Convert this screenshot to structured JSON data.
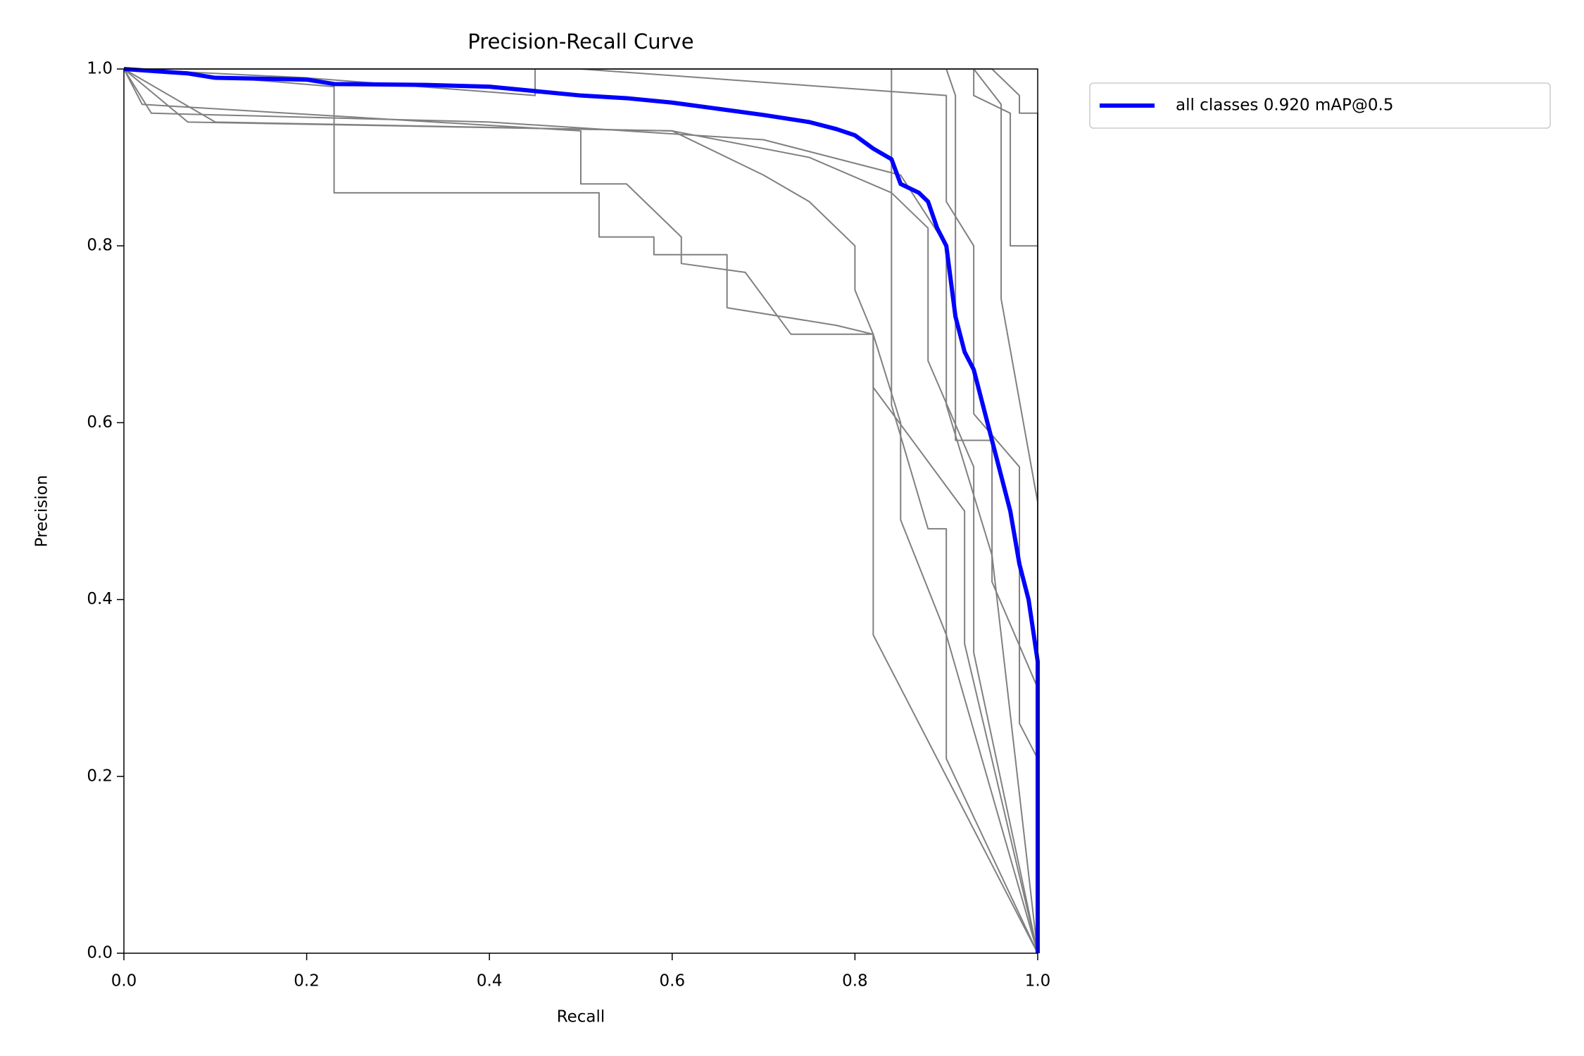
{
  "chart_data": {
    "type": "line",
    "title": "Precision-Recall Curve",
    "x_label": "Recall",
    "y_label": "Precision",
    "xlim": [
      0,
      1
    ],
    "ylim": [
      0,
      1
    ],
    "xticks": [
      {
        "value": 0,
        "label": "0.0"
      },
      0.2,
      0.4,
      0.6,
      0.8,
      {
        "value": 1,
        "label": "1.0"
      }
    ],
    "yticks": [
      {
        "value": 0,
        "label": "0.0"
      },
      0.2,
      0.4,
      0.6,
      0.8,
      {
        "value": 1,
        "label": "1.0"
      }
    ],
    "legend": "outside-upper-right",
    "series": [
      {
        "color": "#808080",
        "x": [
          0,
          0.23,
          0.23,
          0.52,
          0.52,
          0.58,
          0.58,
          0.66,
          0.66,
          0.78,
          0.82,
          0.82,
          0.82,
          1.0
        ],
        "values": [
          1,
          0.98,
          0.86,
          0.86,
          0.81,
          0.81,
          0.79,
          0.79,
          0.73,
          0.71,
          0.7,
          0.64,
          0.36,
          0
        ]
      },
      {
        "color": "#808080",
        "x": [
          0,
          0.02,
          0.5,
          0.5,
          0.55,
          0.61,
          0.61,
          0.68,
          0.73,
          0.82,
          0.82,
          0.92,
          0.92,
          1.0
        ],
        "values": [
          1,
          0.96,
          0.93,
          0.87,
          0.87,
          0.81,
          0.78,
          0.77,
          0.7,
          0.7,
          0.64,
          0.5,
          0.35,
          0
        ]
      },
      {
        "color": "#808080",
        "x": [
          0,
          0.07,
          0.6,
          0.7,
          0.75,
          0.8,
          0.8,
          0.82,
          0.85,
          0.85,
          0.9,
          1.0
        ],
        "values": [
          1,
          0.94,
          0.93,
          0.88,
          0.85,
          0.8,
          0.75,
          0.7,
          0.6,
          0.49,
          0.36,
          0
        ]
      },
      {
        "color": "#808080",
        "x": [
          0,
          0.1,
          0.6,
          0.75,
          0.84,
          0.88,
          0.88,
          0.93,
          0.93,
          1.0
        ],
        "values": [
          1,
          0.94,
          0.93,
          0.9,
          0.86,
          0.82,
          0.67,
          0.55,
          0.34,
          0
        ]
      },
      {
        "color": "#808080",
        "x": [
          0,
          0.03,
          0.4,
          0.7,
          0.85,
          0.9,
          0.9,
          0.95,
          1.0
        ],
        "values": [
          1,
          0.95,
          0.94,
          0.92,
          0.88,
          0.8,
          0.62,
          0.45,
          0
        ]
      },
      {
        "color": "#808080",
        "x": [
          0,
          0.2,
          0.45,
          0.45,
          0.84,
          0.84,
          0.88,
          0.9,
          0.9,
          1.0
        ],
        "values": [
          1,
          0.99,
          0.97,
          1.0,
          1.0,
          0.62,
          0.48,
          0.48,
          0.22,
          0
        ]
      },
      {
        "color": "#808080",
        "x": [
          0,
          0.5,
          0.9,
          0.9,
          0.93,
          0.93,
          0.98,
          0.98,
          1.0,
          1.0
        ],
        "values": [
          1,
          1,
          0.97,
          0.85,
          0.8,
          0.61,
          0.55,
          0.26,
          0.22,
          0
        ]
      },
      {
        "color": "#808080",
        "x": [
          0,
          0.9,
          0.91,
          0.91,
          0.95,
          0.95,
          1.0,
          1.0
        ],
        "values": [
          1,
          1,
          0.97,
          0.58,
          0.58,
          0.42,
          0.3,
          0
        ]
      },
      {
        "color": "#808080",
        "x": [
          0,
          0.93,
          0.93,
          0.97,
          0.97,
          1.0,
          1.0
        ],
        "values": [
          1,
          1,
          0.97,
          0.95,
          0.8,
          0.8,
          0
        ]
      },
      {
        "color": "#808080",
        "x": [
          0,
          0.95,
          0.98,
          0.98,
          1.0,
          1.0
        ],
        "values": [
          1,
          1,
          0.97,
          0.95,
          0.95,
          0
        ]
      },
      {
        "color": "#808080",
        "x": [
          0,
          0.93,
          0.96,
          0.96,
          1.0,
          1.0
        ],
        "values": [
          1,
          1,
          0.96,
          0.74,
          0.51,
          0
        ]
      },
      {
        "name": "all classes 0.920 mAP@0.5",
        "color": "#0000ff",
        "x": [
          0,
          0.07,
          0.1,
          0.2,
          0.23,
          0.33,
          0.4,
          0.45,
          0.5,
          0.55,
          0.6,
          0.65,
          0.7,
          0.75,
          0.78,
          0.8,
          0.82,
          0.84,
          0.85,
          0.87,
          0.88,
          0.89,
          0.9,
          0.905,
          0.91,
          0.92,
          0.93,
          0.94,
          0.95,
          0.96,
          0.97,
          0.98,
          0.99,
          1.0,
          1.0
        ],
        "values": [
          1.0,
          0.995,
          0.99,
          0.988,
          0.983,
          0.982,
          0.98,
          0.975,
          0.97,
          0.967,
          0.962,
          0.955,
          0.948,
          0.94,
          0.932,
          0.925,
          0.91,
          0.898,
          0.87,
          0.86,
          0.85,
          0.82,
          0.8,
          0.76,
          0.72,
          0.68,
          0.66,
          0.62,
          0.58,
          0.54,
          0.5,
          0.44,
          0.4,
          0.33,
          0.0
        ]
      }
    ]
  }
}
